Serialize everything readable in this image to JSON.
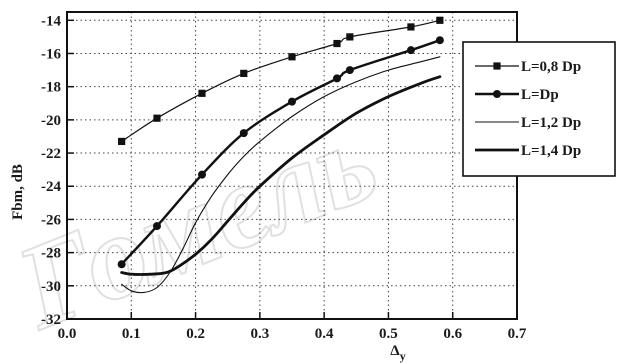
{
  "chart_data": {
    "type": "line",
    "title": "",
    "xlabel": "Δ",
    "xlabel_sub": "y",
    "ylabel": "Fbm, dB",
    "xlim": [
      0.0,
      0.7
    ],
    "ylim": [
      -32,
      -13.5
    ],
    "xticks": [
      0.0,
      0.1,
      0.2,
      0.3,
      0.4,
      0.5,
      0.6,
      0.7
    ],
    "xtick_labels": [
      "0.0",
      "0.1",
      "0.2",
      "0.3",
      "0.4",
      "0.5",
      "0.6",
      "0.7"
    ],
    "yticks": [
      -32,
      -30,
      -28,
      -26,
      -24,
      -22,
      -20,
      -18,
      -16,
      -14
    ],
    "ytick_labels": [
      "-32",
      "-30",
      "-28",
      "-26",
      "-24",
      "-22",
      "-20",
      "-18",
      "-16",
      "-14"
    ],
    "grid": true,
    "legend_position": "right",
    "series": [
      {
        "name": "L=0,8 Dp",
        "marker": "square",
        "line_width": 1.2,
        "color": "#111111",
        "x": [
          0.085,
          0.14,
          0.21,
          0.275,
          0.35,
          0.42,
          0.44,
          0.535,
          0.58
        ],
        "y": [
          -21.3,
          -19.9,
          -18.4,
          -17.2,
          -16.2,
          -15.4,
          -15.0,
          -14.4,
          -14.0
        ],
        "markers_x": [
          0.085,
          0.14,
          0.21,
          0.275,
          0.35,
          0.42,
          0.44,
          0.535,
          0.58
        ],
        "markers_y": [
          -21.3,
          -19.9,
          -18.4,
          -17.2,
          -16.2,
          -15.4,
          -15.0,
          -14.4,
          -14.0
        ]
      },
      {
        "name": "L=Dp",
        "marker": "circle",
        "line_width": 2.4,
        "color": "#111111",
        "x": [
          0.085,
          0.14,
          0.21,
          0.275,
          0.35,
          0.42,
          0.44,
          0.535,
          0.58
        ],
        "y": [
          -28.7,
          -26.4,
          -23.3,
          -20.8,
          -18.9,
          -17.5,
          -17.0,
          -15.8,
          -15.2
        ],
        "markers_x": [
          0.085,
          0.14,
          0.21,
          0.275,
          0.35,
          0.42,
          0.44,
          0.535,
          0.58
        ],
        "markers_y": [
          -28.7,
          -26.4,
          -23.3,
          -20.8,
          -18.9,
          -17.5,
          -17.0,
          -15.8,
          -15.2
        ]
      },
      {
        "name": "L=1,2 Dp",
        "marker": "none",
        "line_width": 1.1,
        "color": "#111111",
        "x": [
          0.085,
          0.1,
          0.12,
          0.14,
          0.16,
          0.18,
          0.2,
          0.225,
          0.25,
          0.275,
          0.3,
          0.35,
          0.4,
          0.45,
          0.5,
          0.55,
          0.58
        ],
        "y": [
          -29.9,
          -30.3,
          -30.4,
          -30.1,
          -29.2,
          -27.8,
          -26.2,
          -24.6,
          -23.3,
          -22.2,
          -21.3,
          -19.8,
          -18.6,
          -17.7,
          -17.0,
          -16.5,
          -16.2
        ]
      },
      {
        "name": "L=1,4 Dp",
        "marker": "none",
        "line_width": 2.8,
        "color": "#111111",
        "x": [
          0.085,
          0.1,
          0.13,
          0.155,
          0.175,
          0.2,
          0.225,
          0.25,
          0.275,
          0.3,
          0.35,
          0.4,
          0.45,
          0.5,
          0.55,
          0.58
        ],
        "y": [
          -29.2,
          -29.3,
          -29.3,
          -29.2,
          -28.8,
          -28.1,
          -27.2,
          -26.1,
          -25.0,
          -24.0,
          -22.3,
          -20.9,
          -19.6,
          -18.6,
          -17.8,
          -17.4
        ]
      }
    ]
  },
  "watermark_text": "Гомель"
}
